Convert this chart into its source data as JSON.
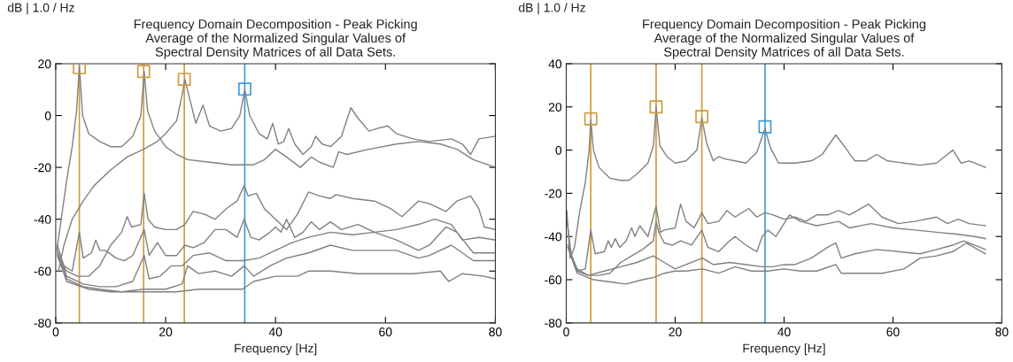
{
  "chart_data": [
    {
      "type": "line",
      "title": "Frequency Domain Decomposition - Peak Picking\nAverage of the Normalized Singular Values of\nSpectral Density Matrices of all Data Sets.",
      "ylabel": "dB | 1.0 / Hz",
      "xlabel": "Frequency [Hz]",
      "xlim": [
        0,
        80
      ],
      "ylim": [
        -80,
        20
      ],
      "xticks": [
        0,
        20,
        40,
        60,
        80
      ],
      "yticks": [
        -80,
        -60,
        -40,
        -20,
        0,
        20
      ],
      "line_style": "solid",
      "ref_lines": [
        {
          "axis": "x",
          "value": 4.3,
          "color": "#d09a3c"
        },
        {
          "axis": "x",
          "value": 16,
          "color": "#d09a3c"
        },
        {
          "axis": "x",
          "value": 23.4,
          "color": "#d09a3c"
        },
        {
          "axis": "x",
          "value": 34.4,
          "color": "#3b9bd4"
        }
      ],
      "series": [
        {
          "color": "#808080",
          "x": [
            0.2,
            1,
            2,
            3,
            3.8,
            4.3,
            4.9,
            6,
            8,
            10,
            12,
            14,
            15.5,
            16.1,
            16.7,
            18,
            20,
            22,
            24,
            28,
            32,
            36,
            38,
            40,
            42,
            44.5,
            46.5,
            48,
            50.5,
            51.5,
            53,
            57,
            62,
            66,
            70,
            73,
            76,
            80
          ],
          "values": [
            -52,
            -40,
            -25,
            -12,
            2,
            19,
            0,
            -7,
            -10,
            -12,
            -12,
            -8,
            0,
            17,
            2,
            -6,
            -12,
            -15,
            -17,
            -18,
            -19,
            -19,
            -17,
            -13,
            -16,
            -20,
            -16,
            -18,
            -20,
            -14,
            -15,
            -13,
            -11,
            -10,
            -11,
            -13,
            -17,
            -20
          ]
        },
        {
          "color": "#808080",
          "x": [
            0.5,
            1.5,
            3,
            5,
            7,
            10,
            13,
            16,
            18.5,
            20,
            22,
            23,
            23.5,
            24.2,
            25.5,
            26.8,
            28,
            30,
            32,
            33.5,
            34.4,
            35.3,
            37,
            38.5,
            39.5,
            40.5,
            41.5,
            42.4,
            43.5,
            45,
            46.5,
            47.3,
            48.5,
            50,
            52,
            53.7,
            55,
            57,
            58.5,
            60.4,
            62,
            65,
            68,
            72,
            74,
            75.5,
            77,
            80
          ],
          "values": [
            -60,
            -50,
            -40,
            -33,
            -27,
            -21,
            -16,
            -13,
            -10,
            -7,
            -2,
            8,
            14,
            8,
            -3,
            4,
            -4,
            -6,
            -5,
            0,
            10,
            0,
            -7,
            -9,
            -3,
            -11,
            -10,
            -5,
            -11,
            -15,
            -12,
            -8,
            -11,
            -12,
            -8,
            3,
            -1,
            -6,
            -5,
            -4,
            -7,
            -9,
            -10,
            -9,
            -11,
            -15,
            -9,
            -8
          ]
        },
        {
          "color": "#808080",
          "x": [
            0.5,
            2,
            4,
            6,
            8,
            10,
            12,
            13,
            13.8,
            15.5,
            16.1,
            16.8,
            18,
            20,
            22,
            23.5,
            25,
            27,
            29,
            31,
            33,
            34.3,
            35,
            36.5,
            38,
            40,
            42,
            44,
            46,
            48,
            50,
            51,
            54,
            58,
            61,
            63,
            66,
            68,
            71,
            73,
            75.5,
            77,
            78,
            80
          ],
          "values": [
            -55,
            -60,
            -62,
            -62,
            -58,
            -50,
            -45,
            -39,
            -43,
            -42,
            -30,
            -40,
            -43,
            -44,
            -44,
            -42,
            -37,
            -38,
            -40,
            -36,
            -33,
            -27,
            -31,
            -30,
            -36,
            -40,
            -44,
            -38,
            -29.5,
            -31,
            -32,
            -30.5,
            -32,
            -33,
            -36,
            -39,
            -33,
            -34,
            -37,
            -33,
            -31,
            -36,
            -43,
            -44
          ]
        },
        {
          "color": "#808080",
          "x": [
            0.3,
            1.5,
            3,
            4.3,
            5,
            6.5,
            7.3,
            8,
            9,
            11,
            12.5,
            14,
            16.1,
            17,
            18.5,
            20,
            22,
            23.5,
            25,
            27,
            29,
            31,
            33,
            34.3,
            35.5,
            37,
            39,
            40,
            41,
            42,
            43.5,
            45,
            46.5,
            48,
            50,
            52,
            55,
            58,
            62,
            66,
            69,
            72,
            74,
            77,
            80
          ],
          "values": [
            -50,
            -58,
            -60,
            -45,
            -55,
            -53,
            -48,
            -52,
            -52,
            -55,
            -56,
            -54,
            -44,
            -54,
            -49,
            -54,
            -54,
            -50,
            -51,
            -49,
            -44,
            -44,
            -47,
            -40,
            -47,
            -48,
            -45,
            -43,
            -45,
            -40,
            -47,
            -45,
            -41,
            -44,
            -41,
            -44,
            -42,
            -45,
            -44,
            -42,
            -40,
            -42,
            -48,
            -47,
            -48
          ]
        },
        {
          "color": "#808080",
          "x": [
            0.3,
            2,
            5,
            8,
            11,
            14,
            16.1,
            17,
            19,
            21,
            23,
            25,
            28,
            31,
            34,
            37,
            40,
            43,
            46,
            50,
            54,
            58,
            62,
            66,
            68,
            71,
            73,
            76,
            78,
            80
          ],
          "values": [
            -52,
            -62,
            -65,
            -66,
            -66,
            -64,
            -54,
            -63,
            -62,
            -58,
            -58,
            -54,
            -53,
            -56,
            -56,
            -55,
            -52,
            -49,
            -47,
            -45,
            -46,
            -45,
            -48,
            -52,
            -50,
            -43,
            -45,
            -53,
            -53,
            -53
          ]
        },
        {
          "color": "#808080",
          "x": [
            0.3,
            2,
            5,
            8,
            12,
            16,
            20,
            23,
            24,
            26,
            29,
            32,
            34.3,
            36,
            39,
            42,
            46,
            50,
            54,
            58,
            62,
            66,
            68,
            72,
            76,
            80
          ],
          "values": [
            -53,
            -63,
            -66,
            -67,
            -68,
            -67,
            -67,
            -65,
            -58,
            -61,
            -60,
            -62,
            -58,
            -62,
            -58,
            -55,
            -53,
            -50,
            -52,
            -52,
            -52,
            -55,
            -54,
            -50,
            -56,
            -56
          ]
        },
        {
          "color": "#808080",
          "x": [
            0.3,
            2,
            6,
            10,
            14,
            18,
            22,
            26,
            30,
            34,
            36,
            40,
            44,
            46,
            50,
            55,
            60,
            65,
            70,
            71.5,
            74,
            78,
            80
          ],
          "values": [
            -54,
            -64,
            -67,
            -68,
            -68,
            -68,
            -68,
            -67,
            -67,
            -67,
            -64,
            -62,
            -62,
            -60,
            -60,
            -61,
            -61,
            -61,
            -60,
            -64,
            -61,
            -62,
            -63
          ]
        },
        {
          "type": "scatter",
          "marker": "square",
          "x": [
            4.3,
            16,
            23.4,
            34.4
          ],
          "values": [
            18.5,
            17,
            14,
            10.2
          ],
          "colors": [
            "#d09a3c",
            "#d09a3c",
            "#d09a3c",
            "#3b9bd4"
          ]
        }
      ]
    },
    {
      "type": "line",
      "title": "Frequency Domain Decomposition - Peak Picking\nAverage of the Normalized Singular Values of\nSpectral Density Matrices of all Data Sets.",
      "ylabel": "dB | 1.0 / Hz",
      "xlabel": "Frequency [Hz]",
      "xlim": [
        0,
        80
      ],
      "ylim": [
        -80,
        40
      ],
      "xticks": [
        0,
        20,
        40,
        60,
        80
      ],
      "yticks": [
        -80,
        -60,
        -40,
        -20,
        0,
        20,
        40
      ],
      "line_style": "solid",
      "ref_lines": [
        {
          "axis": "x",
          "value": 4.5,
          "color": "#d09a3c"
        },
        {
          "axis": "x",
          "value": 16.5,
          "color": "#d09a3c"
        },
        {
          "axis": "x",
          "value": 24.9,
          "color": "#d09a3c"
        },
        {
          "axis": "x",
          "value": 36.5,
          "color": "#3b9bd4"
        }
      ],
      "series": [
        {
          "color": "#808080",
          "x": [
            0.1,
            0.7,
            1.5,
            2.5,
            3.5,
            4.2,
            4.5,
            5,
            6,
            8,
            10,
            11.5,
            13,
            15,
            16,
            16.5,
            17.2,
            18.5,
            20,
            22,
            24,
            24.9,
            25.8,
            27,
            28,
            29,
            31,
            33,
            35,
            36.5,
            37.5,
            39,
            42,
            45,
            47,
            49.5,
            51,
            53,
            55,
            57,
            59,
            62,
            65,
            68,
            70,
            71,
            72.5,
            74,
            76,
            77
          ],
          "values": [
            -28,
            -50,
            -45,
            -28,
            -15,
            0,
            14,
            0,
            -8,
            -13,
            -14,
            -14,
            -11,
            -6,
            2,
            20,
            2,
            -3,
            -6,
            -5,
            0,
            15,
            3,
            -5,
            -3,
            -4,
            -5,
            -6,
            -1,
            10,
            1,
            -6,
            -6,
            -5,
            -2,
            7,
            2,
            -5,
            -5,
            -2,
            -5,
            -6,
            -7,
            -6,
            -2,
            0,
            -6,
            -5,
            -7,
            -8
          ]
        },
        {
          "color": "#808080",
          "x": [
            0,
            1,
            2,
            3.5,
            4.5,
            5.3,
            7,
            7.7,
            8.3,
            9,
            9.8,
            11,
            12,
            12.6,
            13.5,
            15,
            16.5,
            17.3,
            18,
            20,
            21,
            22,
            23.5,
            24.9,
            26,
            28,
            29.5,
            31,
            33.5,
            35,
            36.5,
            38,
            40,
            42,
            44,
            46,
            48,
            50,
            52,
            55.5,
            58,
            61,
            64,
            68,
            70,
            72,
            74,
            77
          ],
          "values": [
            -30,
            -50,
            -56,
            -55,
            -37,
            -48,
            -47,
            -42,
            -45,
            -41,
            -45,
            -42,
            -36,
            -40,
            -35,
            -40,
            -26,
            -38,
            -37,
            -36,
            -25,
            -33,
            -36,
            -29,
            -34,
            -33,
            -28,
            -31,
            -27,
            -31,
            -29,
            -30,
            -32,
            -31,
            -33,
            -30,
            -30,
            -28,
            -30,
            -25,
            -31,
            -34,
            -33,
            -31,
            -34,
            -32,
            -34,
            -35
          ]
        },
        {
          "color": "#808080",
          "x": [
            0.3,
            2,
            4,
            6,
            8,
            10,
            12,
            14,
            16,
            16.5,
            17,
            18,
            19.5,
            21,
            23,
            24.9,
            26,
            28,
            30,
            31,
            33,
            35,
            36,
            37,
            38.5,
            41,
            43,
            46,
            48,
            50,
            52,
            56,
            60,
            64,
            68,
            72,
            75,
            77
          ],
          "values": [
            -45,
            -55,
            -58,
            -58,
            -57,
            -52,
            -49,
            -46,
            -42,
            -33,
            -38,
            -43,
            -44,
            -42,
            -44,
            -37,
            -45,
            -47,
            -42,
            -40,
            -44,
            -47,
            -40,
            -37,
            -40,
            -30,
            -33,
            -35,
            -34,
            -33,
            -36,
            -34,
            -36,
            -37,
            -38,
            -39,
            -40,
            -41
          ]
        },
        {
          "color": "#808080",
          "x": [
            0.3,
            2,
            4,
            7,
            10,
            13,
            16,
            18,
            20,
            22,
            25,
            27,
            30,
            33,
            36,
            38,
            40,
            42,
            45,
            48,
            49.5,
            50.5,
            53,
            57,
            61,
            65,
            68,
            71,
            73,
            77
          ],
          "values": [
            -44,
            -56,
            -58,
            -56,
            -54,
            -52,
            -49,
            -52,
            -55,
            -53,
            -50,
            -53,
            -52,
            -53,
            -54,
            -54,
            -53,
            -53,
            -50,
            -45,
            -43,
            -50,
            -48,
            -46,
            -47,
            -48,
            -46,
            -44,
            -42,
            -46
          ]
        },
        {
          "color": "#808080",
          "x": [
            0.3,
            2,
            5,
            8,
            11,
            14,
            16,
            18,
            20,
            22,
            25,
            28,
            31,
            34,
            37,
            40,
            43,
            46,
            49.5,
            50.5,
            54,
            58,
            62,
            65,
            68,
            71,
            73.5,
            77
          ],
          "values": [
            -45,
            -57,
            -60,
            -61,
            -62,
            -60,
            -59,
            -57,
            -56,
            -56,
            -55,
            -57,
            -54,
            -56,
            -56,
            -55,
            -56,
            -56,
            -53,
            -57,
            -57,
            -57,
            -55,
            -50,
            -49,
            -47,
            -43,
            -48
          ]
        },
        {
          "type": "scatter",
          "marker": "square",
          "x": [
            4.5,
            16.5,
            24.9,
            36.5
          ],
          "values": [
            14.5,
            20,
            15.5,
            10.8
          ],
          "colors": [
            "#d09a3c",
            "#d09a3c",
            "#d09a3c",
            "#3b9bd4"
          ]
        }
      ]
    }
  ]
}
